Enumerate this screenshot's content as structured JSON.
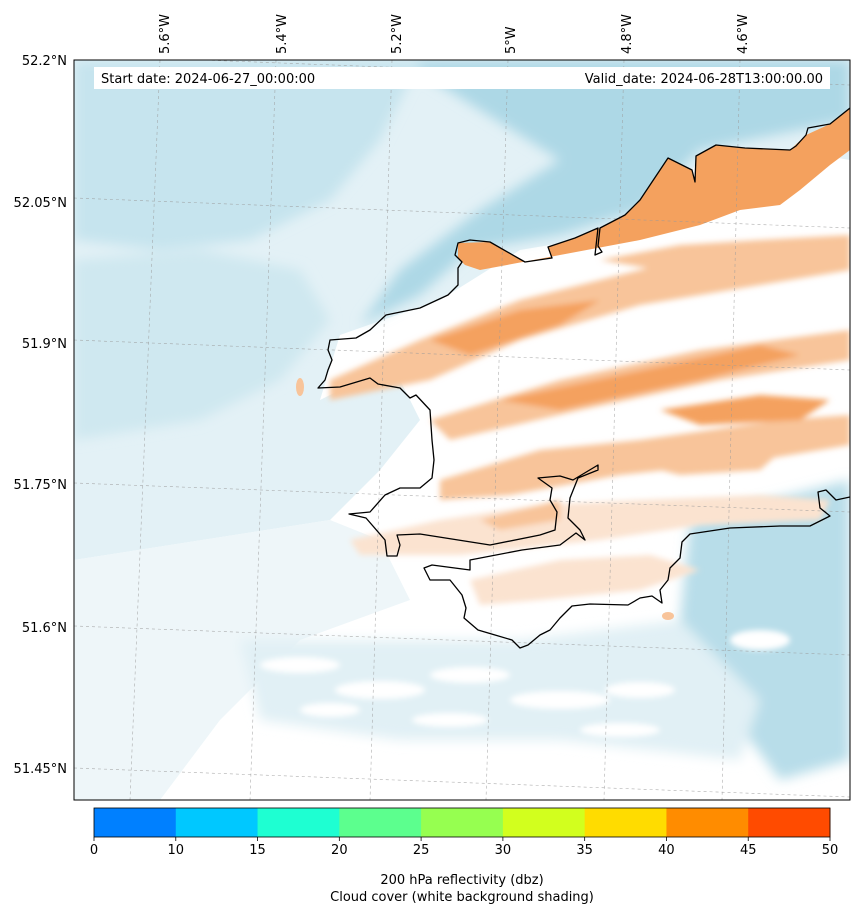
{
  "map": {
    "start_label": "Start date: 2024-06-27_00:00:00",
    "valid_label": "Valid_date: 2024-06-28T13:00:00.00",
    "lon_labels": [
      "5.6°W",
      "5.4°W",
      "5.2°W",
      "5°W",
      "4.8°W",
      "4.6°W"
    ],
    "lat_labels": [
      "52.2°N",
      "52.05°N",
      "51.9°N",
      "51.75°N",
      "51.6°N",
      "51.45°N"
    ],
    "colors": {
      "cloud_light": "#e3f1f6",
      "cloud_mid": "#cfe8f0",
      "cloud_dark": "#add8e6",
      "reflectivity_light": "#fbe3d0",
      "reflectivity_mid": "#f8c49a",
      "reflectivity_dark": "#f4a15e"
    }
  },
  "colorbar": {
    "ticks": [
      "0",
      "10",
      "15",
      "20",
      "25",
      "30",
      "35",
      "40",
      "45",
      "50"
    ],
    "colors": [
      "#0080ff",
      "#00c8ff",
      "#1effd2",
      "#5cff8e",
      "#96ff50",
      "#d2ff1e",
      "#ffdc00",
      "#ff8c00",
      "#ff4b00"
    ],
    "label_line1": "200 hPa reflectivity (dbz)",
    "label_line2": "Cloud cover (white background shading)"
  }
}
